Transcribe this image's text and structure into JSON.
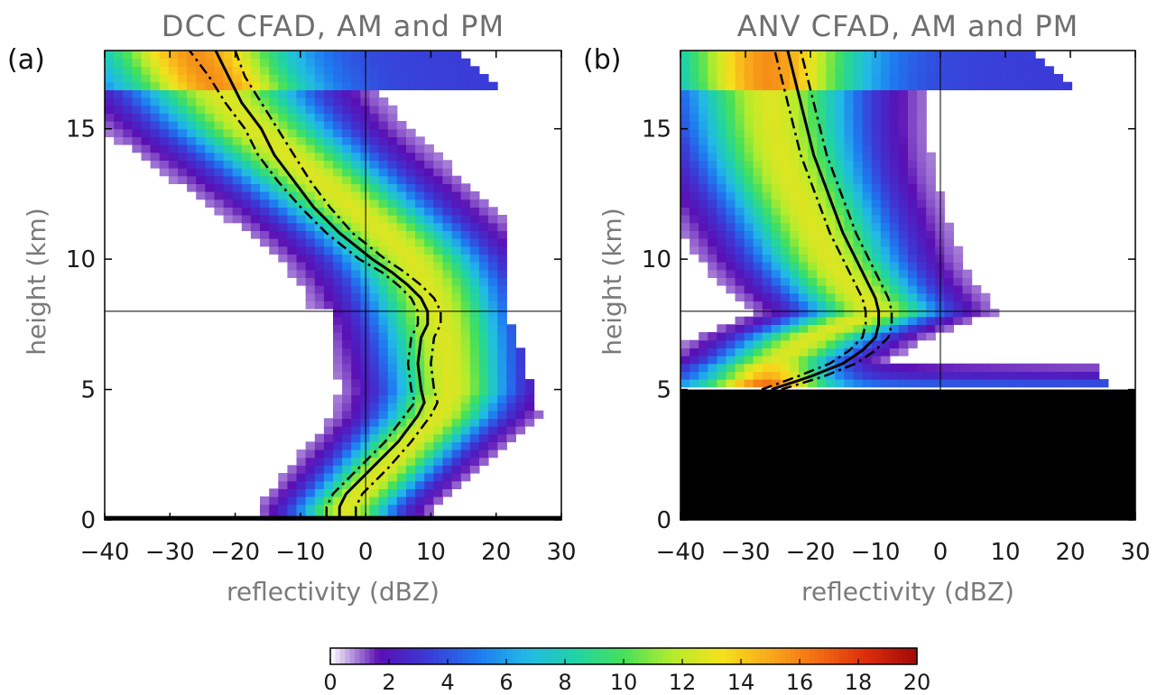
{
  "chart_data": [
    {
      "type": "heatmap",
      "panel_label": "(a)",
      "title": "DCC CFAD, AM and PM",
      "xlabel": "reflectivity (dBZ)",
      "ylabel": "height (km)",
      "xlim": [
        -40,
        30
      ],
      "ylim": [
        0,
        18
      ],
      "xticks": [
        "-40",
        "-30",
        "-20",
        "-10",
        "0",
        "10",
        "20",
        "30"
      ],
      "yticks": [
        "0",
        "5",
        "10",
        "15"
      ],
      "reference_lines": {
        "x": 0,
        "y": 8
      },
      "masked_rect": {
        "x": [
          -40,
          -5
        ],
        "y": [
          5,
          8
        ]
      },
      "ridge": {
        "heights": [
          0.5,
          2,
          4,
          5,
          6,
          7,
          8,
          9,
          10,
          11,
          12,
          13,
          14,
          15,
          16,
          17,
          17.8
        ],
        "reflectivity": [
          -3,
          3,
          11,
          13,
          12.5,
          12,
          11,
          9.5,
          7,
          3,
          -2,
          -7,
          -12,
          -17,
          -21,
          -24,
          -26
        ]
      },
      "lines": [
        {
          "style": "solid",
          "heights": [
            0.1,
            0.5,
            1,
            2,
            3,
            4,
            4.5,
            5,
            6,
            7,
            7.5,
            8,
            8.5,
            9,
            9.5,
            10,
            11,
            12,
            13,
            14,
            15,
            16,
            17,
            18
          ],
          "reflectivity": [
            -4,
            -4,
            -3,
            1,
            5,
            8,
            9,
            8.5,
            8,
            8.5,
            9.5,
            9.5,
            8.5,
            6.5,
            4,
            1,
            -4,
            -8,
            -11,
            -14,
            -16,
            -19,
            -21,
            -23
          ]
        },
        {
          "style": "dashdot",
          "heights": [
            0.1,
            0.5,
            1,
            2,
            3,
            4,
            4.5,
            5,
            6,
            7,
            7.5,
            8,
            8.5,
            9,
            9.5,
            10,
            11,
            12,
            13,
            14,
            15,
            16,
            17,
            18
          ],
          "reflectivity": [
            -6,
            -6,
            -5,
            -1,
            3,
            6,
            7.5,
            7,
            6.5,
            7,
            8,
            8,
            7,
            5,
            2.5,
            -1,
            -6,
            -10,
            -13.5,
            -16.5,
            -18.5,
            -21.5,
            -24,
            -27
          ]
        },
        {
          "style": "dashdot",
          "heights": [
            0.1,
            0.5,
            1,
            2,
            3,
            4,
            4.5,
            5,
            6,
            7,
            7.5,
            8,
            8.5,
            9,
            9.5,
            10,
            11,
            12,
            13,
            14,
            15,
            16,
            17,
            18
          ],
          "reflectivity": [
            -1.5,
            -1.5,
            -0.5,
            3.5,
            7,
            10,
            11,
            10.5,
            10,
            10.5,
            11.5,
            11.5,
            10.5,
            8.5,
            6,
            3,
            -2,
            -5.5,
            -8.5,
            -11,
            -13.5,
            -16,
            -18.5,
            -20
          ]
        }
      ]
    },
    {
      "type": "heatmap",
      "panel_label": "(b)",
      "title": "ANV CFAD, AM and PM",
      "xlabel": "reflectivity (dBZ)",
      "ylabel": "height (km)",
      "xlim": [
        -40,
        30
      ],
      "ylim": [
        0,
        18
      ],
      "xticks": [
        "-40",
        "-30",
        "-20",
        "-10",
        "0",
        "10",
        "20",
        "30"
      ],
      "yticks": [
        "0",
        "5",
        "10",
        "15"
      ],
      "reference_lines": {
        "x": 0,
        "y": 8
      },
      "masked_below": 5,
      "ridge": {
        "heights": [
          5.1,
          6,
          7,
          8,
          9,
          10,
          11,
          12,
          13,
          14,
          15,
          16,
          17,
          17.8
        ],
        "reflectivity": [
          -27,
          -26,
          -20,
          -10,
          -14,
          -17,
          -19,
          -21,
          -23,
          -24.5,
          -25.5,
          -26,
          -26.5,
          -26.5
        ]
      },
      "lines": [
        {
          "style": "solid",
          "heights": [
            5,
            5.5,
            6,
            6.5,
            7,
            7.5,
            8,
            8.5,
            9,
            10,
            11,
            12,
            13,
            14,
            15,
            16,
            17,
            18
          ],
          "reflectivity": [
            -26,
            -20,
            -15,
            -12,
            -10,
            -9.5,
            -9.5,
            -10,
            -11,
            -13,
            -15,
            -16.5,
            -18,
            -19.5,
            -20.5,
            -21.5,
            -22.5,
            -23.5
          ]
        },
        {
          "style": "dashdot",
          "heights": [
            5,
            5.5,
            6,
            6.5,
            7,
            7.5,
            8,
            8.5,
            9,
            10,
            11,
            12,
            13,
            14,
            15,
            16,
            17,
            18
          ],
          "reflectivity": [
            -27.5,
            -22,
            -17,
            -14,
            -12,
            -11.5,
            -11.5,
            -12,
            -13,
            -15,
            -17,
            -18.5,
            -20,
            -21.5,
            -22.5,
            -23.5,
            -24.5,
            -25.5
          ]
        },
        {
          "style": "dashdot",
          "heights": [
            5,
            5.5,
            6,
            6.5,
            7,
            7.5,
            8,
            8.5,
            9,
            10,
            11,
            12,
            13,
            14,
            15,
            16,
            17,
            18
          ],
          "reflectivity": [
            -24.5,
            -18,
            -13,
            -10,
            -8,
            -7.5,
            -7.5,
            -8,
            -9,
            -11,
            -13,
            -14.5,
            -16,
            -17.5,
            -18.5,
            -19.5,
            -20.5,
            -21.5
          ]
        }
      ]
    }
  ],
  "colorbar": {
    "min": 0,
    "max": 20,
    "ticks": [
      "0",
      "2",
      "4",
      "6",
      "8",
      "10",
      "12",
      "14",
      "16",
      "18",
      "20"
    ],
    "colors": [
      "#ffffff",
      "#5a0fb4",
      "#3b3ad6",
      "#1f78f0",
      "#22b8e8",
      "#1fd3a6",
      "#46e05a",
      "#b4ec2c",
      "#f5e11c",
      "#f8a91a",
      "#f26a13",
      "#dc2a0c",
      "#a00a08"
    ]
  }
}
